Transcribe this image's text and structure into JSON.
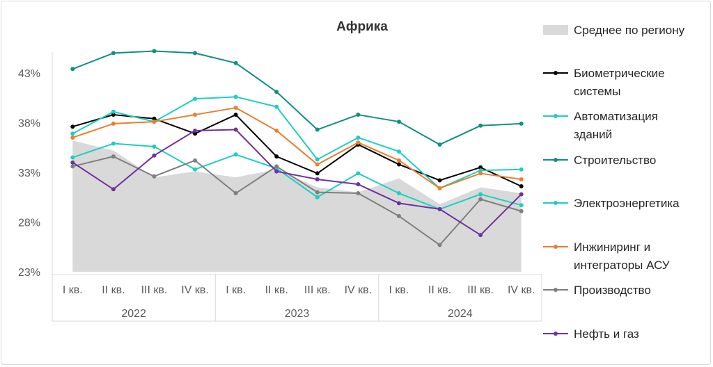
{
  "chart_data": {
    "type": "line",
    "title": "Африка",
    "xlabel": "",
    "ylabel": "",
    "ylim": [
      23,
      45
    ],
    "y_ticks": [
      "43%",
      "38%",
      "33%",
      "28%",
      "23%"
    ],
    "y_tick_values": [
      43,
      38,
      33,
      28,
      23
    ],
    "categories": [
      "I кв.",
      "II кв.",
      "III кв.",
      "IV кв.",
      "I кв.",
      "II кв.",
      "III кв.",
      "IV кв.",
      "I кв.",
      "II кв.",
      "III кв.",
      "IV кв."
    ],
    "years": [
      "2022",
      "2023",
      "2024"
    ],
    "grid": false,
    "legend_position": "right",
    "area": {
      "name": "Среднее по региону",
      "color": "#d9d9d9",
      "values": [
        36.2,
        35.2,
        32.5,
        33.1,
        32.5,
        33.3,
        31.5,
        31.0,
        32.4,
        29.8,
        31.5,
        30.9
      ]
    },
    "series": [
      {
        "name": "Биометрические системы",
        "color": "#000000",
        "values": [
          37.6,
          38.8,
          38.4,
          36.9,
          38.8,
          34.6,
          32.9,
          35.8,
          33.8,
          32.2,
          33.5,
          31.6
        ]
      },
      {
        "name": "Автоматизация зданий",
        "color": "#1ccfc1",
        "values": [
          36.9,
          39.1,
          38.1,
          40.4,
          40.6,
          39.6,
          34.3,
          36.5,
          35.1,
          31.4,
          33.2,
          33.3
        ]
      },
      {
        "name": "Строительство",
        "color": "#0f8f80",
        "values": [
          43.4,
          45.0,
          45.2,
          45.0,
          44.0,
          41.1,
          37.3,
          38.8,
          38.1,
          35.8,
          37.7,
          37.9
        ]
      },
      {
        "name": "Электроэнергетика",
        "color": "#1ccfc1",
        "values": [
          34.5,
          35.9,
          35.6,
          33.3,
          34.8,
          33.4,
          30.5,
          32.9,
          30.9,
          29.3,
          30.8,
          29.7
        ]
      },
      {
        "name": "Инжиниринг и интеграторы АСУ",
        "color": "#ed7d31",
        "values": [
          36.5,
          37.9,
          38.1,
          38.8,
          39.5,
          37.2,
          33.8,
          36.0,
          34.2,
          31.4,
          32.9,
          32.3
        ]
      },
      {
        "name": "Производство",
        "color": "#7f7f7f",
        "values": [
          33.6,
          34.6,
          32.6,
          34.2,
          30.9,
          33.6,
          31.0,
          30.9,
          28.6,
          25.7,
          30.3,
          29.1
        ]
      },
      {
        "name": "Нефть и газ",
        "color": "#7030a0",
        "values": [
          34.0,
          31.3,
          34.7,
          37.2,
          37.3,
          33.1,
          32.3,
          31.8,
          29.9,
          29.3,
          26.7,
          30.8
        ]
      }
    ],
    "legend_lines": [
      [
        "Среднее по региону"
      ],
      [
        "Биометрические",
        "системы"
      ],
      [
        "Автоматизация",
        "зданий"
      ],
      [
        "Строительство"
      ],
      [
        "Электроэнергетика"
      ],
      [
        "Инжиниринг и",
        "интеграторы АСУ"
      ],
      [
        "Производство"
      ],
      [
        "Нефть и газ"
      ]
    ]
  }
}
